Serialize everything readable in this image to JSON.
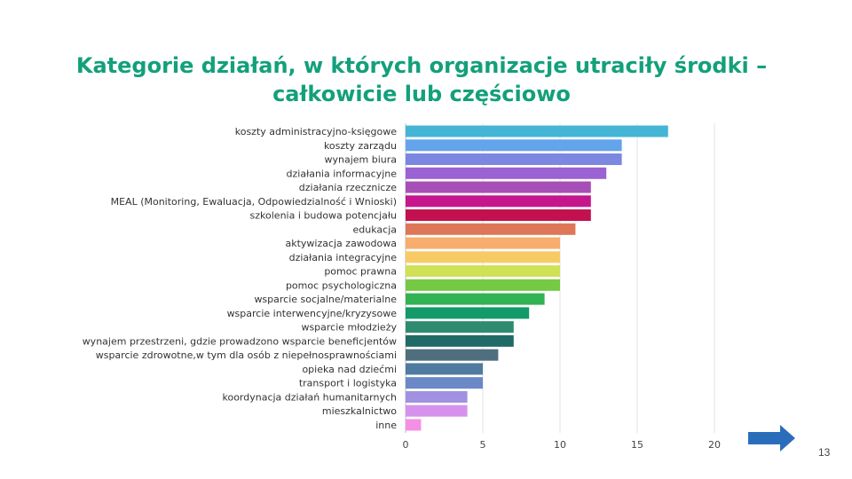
{
  "slide": {
    "title_line1": "Kategorie działań, w których organizacje utraciły środki –",
    "title_line2": "całkowicie lub częściowo",
    "page_number": "13",
    "title_color": "#13a07b",
    "next_icon": "right-arrow-icon",
    "next_color": "#2a6ebb"
  },
  "chart_data": {
    "type": "bar",
    "orientation": "horizontal",
    "title": "",
    "xlabel": "",
    "ylabel": "",
    "xlim": [
      0,
      20
    ],
    "xticks": [
      "0",
      "5",
      "10",
      "15",
      "20"
    ],
    "grid": true,
    "legend": "none",
    "categories": [
      "koszty administracyjno-księgowe",
      "koszty zarządu",
      "wynajem biura",
      "działania informacyjne",
      "działania rzecznicze",
      "MEAL (Monitoring, Ewaluacja, Odpowiedzialność i Wnioski)",
      "szkolenia i budowa potencjału",
      "edukacja",
      "aktywizacja zawodowa",
      "działania integracyjne",
      "pomoc prawna",
      "pomoc psychologiczna",
      "wsparcie socjalne/materialne",
      "wsparcie interwencyjne/kryzysowe",
      "wsparcie młodzieży",
      "wynajem przestrzeni, gdzie prowadzono wsparcie beneficjentów",
      "wsparcie zdrowotne,w tym dla osób z niepełnosprawnościami",
      "opieka nad dziećmi",
      "transport i logistyka",
      "koordynacja działań humanitarnych",
      "mieszkalnictwo",
      "inne"
    ],
    "values": [
      17,
      14,
      14,
      13,
      12,
      12,
      12,
      11,
      10,
      10,
      10,
      10,
      9,
      8,
      7,
      7,
      6,
      5,
      5,
      4,
      4,
      1
    ],
    "colors": [
      "#45b5d5",
      "#63a4ec",
      "#7b87e0",
      "#9a62d2",
      "#a64fb6",
      "#c5168e",
      "#c2114e",
      "#dd7757",
      "#f7ad6d",
      "#f8ca66",
      "#cfe155",
      "#75c944",
      "#32b254",
      "#129a69",
      "#2e8b70",
      "#206b68",
      "#4f6f7f",
      "#4f7ba0",
      "#6b88c7",
      "#a191e1",
      "#d592ed",
      "#f58fe5"
    ]
  }
}
